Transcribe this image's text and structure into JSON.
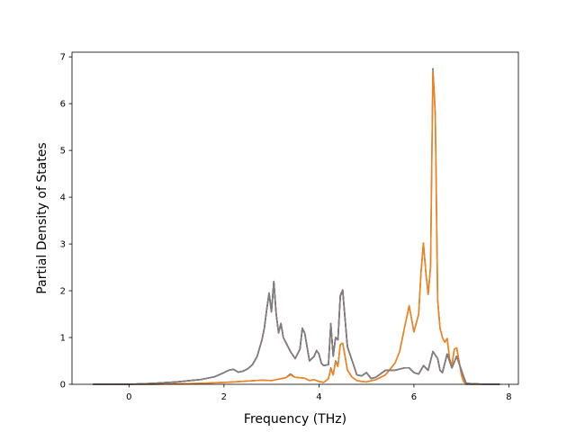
{
  "chart_data": {
    "type": "line",
    "title": "",
    "xlabel": "Frequency (THz)",
    "ylabel": "Partial Density of States",
    "xlim": [
      -1.2,
      8.2
    ],
    "ylim": [
      0,
      7.1
    ],
    "xticks": [
      0,
      2,
      4,
      6,
      8
    ],
    "yticks": [
      0,
      1,
      2,
      3,
      4,
      5,
      6,
      7
    ],
    "grid": false,
    "legend": "none",
    "series": [
      {
        "color": "#1f77b4",
        "x": [
          -0.75,
          0.0,
          0.5,
          1.0,
          1.5,
          2.0,
          2.2,
          2.5,
          2.8,
          3.0,
          3.1,
          3.2,
          3.3,
          3.4,
          3.5,
          3.6,
          3.7,
          3.8,
          3.9,
          4.0,
          4.1,
          4.2,
          4.25,
          4.3,
          4.35,
          4.4,
          4.45,
          4.5,
          4.55,
          4.6,
          4.7,
          4.8,
          4.9,
          5.0,
          5.2,
          5.4,
          5.6,
          5.7,
          5.8,
          5.9,
          6.0,
          6.1,
          6.15,
          6.2,
          6.25,
          6.3,
          6.35,
          6.4,
          6.45,
          6.5,
          6.55,
          6.6,
          6.65,
          6.7,
          6.75,
          6.8,
          6.85,
          6.9,
          6.95,
          7.0,
          7.05,
          7.1,
          7.5,
          7.8
        ],
        "y": [
          0.0,
          0.0,
          0.0,
          0.01,
          0.02,
          0.04,
          0.05,
          0.07,
          0.09,
          0.08,
          0.1,
          0.12,
          0.14,
          0.22,
          0.15,
          0.14,
          0.13,
          0.08,
          0.1,
          0.06,
          0.04,
          0.12,
          0.35,
          0.2,
          0.5,
          0.4,
          0.85,
          0.88,
          0.6,
          0.3,
          0.15,
          0.08,
          0.06,
          0.05,
          0.1,
          0.2,
          0.45,
          0.7,
          1.2,
          1.68,
          1.12,
          1.5,
          2.4,
          3.02,
          2.4,
          1.92,
          2.5,
          6.75,
          5.8,
          1.8,
          1.2,
          1.0,
          0.9,
          0.98,
          0.55,
          0.4,
          0.75,
          0.78,
          0.5,
          0.2,
          0.05,
          0.0,
          0.0,
          0.0
        ]
      },
      {
        "color": "#ff7f0e",
        "x": [
          -0.75,
          0.0,
          0.5,
          1.0,
          1.5,
          2.0,
          2.2,
          2.5,
          2.8,
          3.0,
          3.1,
          3.2,
          3.3,
          3.4,
          3.5,
          3.6,
          3.7,
          3.8,
          3.9,
          4.0,
          4.1,
          4.2,
          4.25,
          4.3,
          4.35,
          4.4,
          4.45,
          4.5,
          4.55,
          4.6,
          4.7,
          4.8,
          4.9,
          5.0,
          5.2,
          5.4,
          5.6,
          5.7,
          5.8,
          5.9,
          6.0,
          6.1,
          6.15,
          6.2,
          6.25,
          6.3,
          6.35,
          6.4,
          6.45,
          6.5,
          6.55,
          6.6,
          6.65,
          6.7,
          6.75,
          6.8,
          6.85,
          6.9,
          6.95,
          7.0,
          7.05,
          7.1,
          7.5,
          7.8
        ],
        "y": [
          0.0,
          0.0,
          0.0,
          0.01,
          0.02,
          0.04,
          0.05,
          0.07,
          0.09,
          0.08,
          0.1,
          0.12,
          0.14,
          0.2,
          0.15,
          0.14,
          0.13,
          0.08,
          0.1,
          0.06,
          0.04,
          0.12,
          0.33,
          0.2,
          0.48,
          0.38,
          0.85,
          0.88,
          0.6,
          0.3,
          0.15,
          0.08,
          0.06,
          0.05,
          0.1,
          0.2,
          0.45,
          0.7,
          1.2,
          1.68,
          1.12,
          1.5,
          2.4,
          3.02,
          2.4,
          1.92,
          2.5,
          6.7,
          5.75,
          1.8,
          1.2,
          1.0,
          0.9,
          0.98,
          0.55,
          0.4,
          0.75,
          0.78,
          0.5,
          0.2,
          0.05,
          0.0,
          0.0,
          0.0
        ]
      },
      {
        "color": "#2ca02c",
        "x": [
          -0.75,
          0.0,
          0.5,
          1.0,
          1.5,
          1.8,
          2.0,
          2.1,
          2.2,
          2.3,
          2.4,
          2.5,
          2.6,
          2.7,
          2.8,
          2.85,
          2.9,
          2.95,
          3.0,
          3.05,
          3.1,
          3.15,
          3.2,
          3.25,
          3.3,
          3.4,
          3.5,
          3.6,
          3.65,
          3.7,
          3.8,
          3.9,
          3.95,
          4.0,
          4.05,
          4.1,
          4.2,
          4.25,
          4.3,
          4.35,
          4.4,
          4.45,
          4.5,
          4.55,
          4.6,
          4.7,
          4.8,
          4.9,
          5.0,
          5.1,
          5.2,
          5.4,
          5.6,
          5.8,
          5.9,
          6.0,
          6.1,
          6.2,
          6.3,
          6.4,
          6.5,
          6.55,
          6.6,
          6.7,
          6.8,
          6.9,
          7.0,
          7.05,
          7.1,
          7.5,
          7.8
        ],
        "y": [
          0.0,
          0.0,
          0.02,
          0.05,
          0.1,
          0.16,
          0.25,
          0.3,
          0.32,
          0.26,
          0.28,
          0.33,
          0.42,
          0.6,
          0.95,
          1.2,
          1.6,
          1.95,
          1.55,
          2.2,
          1.5,
          1.1,
          1.3,
          1.0,
          0.9,
          0.7,
          0.55,
          0.75,
          1.2,
          1.1,
          0.5,
          0.6,
          0.72,
          0.65,
          0.45,
          0.4,
          0.42,
          1.3,
          0.6,
          1.0,
          0.95,
          1.9,
          2.02,
          1.4,
          0.8,
          0.5,
          0.2,
          0.18,
          0.25,
          0.12,
          0.15,
          0.3,
          0.3,
          0.35,
          0.35,
          0.25,
          0.22,
          0.4,
          0.3,
          0.7,
          0.55,
          0.3,
          0.25,
          0.65,
          0.35,
          0.6,
          0.3,
          0.15,
          0.02,
          0.0,
          0.0
        ]
      },
      {
        "color": "#d62728",
        "x": [
          -0.75,
          0.0,
          0.5,
          1.0,
          1.5,
          1.8,
          2.0,
          2.1,
          2.2,
          2.3,
          2.4,
          2.5,
          2.6,
          2.7,
          2.8,
          2.85,
          2.9,
          2.95,
          3.0,
          3.05,
          3.1,
          3.15,
          3.2,
          3.25,
          3.3,
          3.4,
          3.5,
          3.6,
          3.65,
          3.7,
          3.8,
          3.9,
          3.95,
          4.0,
          4.05,
          4.1,
          4.2,
          4.25,
          4.3,
          4.35,
          4.4,
          4.45,
          4.5,
          4.55,
          4.6,
          4.7,
          4.8,
          4.9,
          5.0,
          5.1,
          5.2,
          5.4,
          5.6,
          5.8,
          5.9,
          6.0,
          6.1,
          6.2,
          6.3,
          6.4,
          6.5,
          6.55,
          6.6,
          6.7,
          6.8,
          6.9,
          7.0,
          7.05,
          7.1,
          7.5,
          7.8
        ],
        "y": [
          0.0,
          0.0,
          0.02,
          0.05,
          0.1,
          0.16,
          0.25,
          0.3,
          0.32,
          0.26,
          0.28,
          0.33,
          0.42,
          0.6,
          0.95,
          1.2,
          1.6,
          1.93,
          1.55,
          2.18,
          1.5,
          1.1,
          1.3,
          1.0,
          0.9,
          0.7,
          0.55,
          0.75,
          1.18,
          1.1,
          0.5,
          0.6,
          0.72,
          0.65,
          0.45,
          0.4,
          0.42,
          1.28,
          0.6,
          1.0,
          0.95,
          1.88,
          2.0,
          1.4,
          0.8,
          0.5,
          0.2,
          0.18,
          0.25,
          0.12,
          0.15,
          0.3,
          0.3,
          0.35,
          0.35,
          0.25,
          0.22,
          0.4,
          0.3,
          0.7,
          0.55,
          0.3,
          0.25,
          0.65,
          0.35,
          0.6,
          0.3,
          0.15,
          0.02,
          0.0,
          0.0
        ]
      },
      {
        "color": "#9467bd",
        "x": [
          -0.75,
          0.0,
          0.5,
          1.0,
          1.5,
          1.8,
          2.0,
          2.1,
          2.2,
          2.3,
          2.4,
          2.5,
          2.6,
          2.7,
          2.8,
          2.85,
          2.9,
          2.95,
          3.0,
          3.05,
          3.1,
          3.15,
          3.2,
          3.25,
          3.3,
          3.4,
          3.5,
          3.6,
          3.65,
          3.7,
          3.8,
          3.9,
          3.95,
          4.0,
          4.05,
          4.1,
          4.2,
          4.25,
          4.3,
          4.35,
          4.4,
          4.45,
          4.5,
          4.55,
          4.6,
          4.7,
          4.8,
          4.9,
          5.0,
          5.1,
          5.2,
          5.4,
          5.6,
          5.8,
          5.9,
          6.0,
          6.1,
          6.2,
          6.3,
          6.4,
          6.5,
          6.55,
          6.6,
          6.7,
          6.8,
          6.9,
          7.0,
          7.05,
          7.1,
          7.5,
          7.8
        ],
        "y": [
          0.0,
          0.0,
          0.02,
          0.05,
          0.1,
          0.16,
          0.25,
          0.3,
          0.32,
          0.26,
          0.28,
          0.33,
          0.42,
          0.6,
          0.95,
          1.2,
          1.6,
          1.94,
          1.55,
          2.19,
          1.5,
          1.1,
          1.3,
          1.0,
          0.9,
          0.7,
          0.55,
          0.75,
          1.19,
          1.1,
          0.5,
          0.6,
          0.72,
          0.65,
          0.45,
          0.4,
          0.42,
          1.29,
          0.6,
          1.0,
          0.95,
          1.89,
          2.01,
          1.4,
          0.8,
          0.5,
          0.2,
          0.18,
          0.25,
          0.12,
          0.15,
          0.3,
          0.3,
          0.35,
          0.35,
          0.25,
          0.22,
          0.4,
          0.3,
          0.7,
          0.55,
          0.3,
          0.25,
          0.65,
          0.35,
          0.6,
          0.3,
          0.15,
          0.02,
          0.0,
          0.0
        ]
      },
      {
        "color": "#8c564b",
        "x": [
          -0.75,
          0.0,
          0.5,
          1.0,
          1.5,
          1.8,
          2.0,
          2.1,
          2.2,
          2.3,
          2.4,
          2.5,
          2.6,
          2.7,
          2.8,
          2.85,
          2.9,
          2.95,
          3.0,
          3.05,
          3.1,
          3.15,
          3.2,
          3.25,
          3.3,
          3.4,
          3.5,
          3.6,
          3.65,
          3.7,
          3.8,
          3.9,
          3.95,
          4.0,
          4.05,
          4.1,
          4.2,
          4.25,
          4.3,
          4.35,
          4.4,
          4.45,
          4.5,
          4.55,
          4.6,
          4.7,
          4.8,
          4.9,
          5.0,
          5.1,
          5.2,
          5.4,
          5.6,
          5.8,
          5.9,
          6.0,
          6.1,
          6.2,
          6.3,
          6.4,
          6.5,
          6.55,
          6.6,
          6.7,
          6.8,
          6.9,
          7.0,
          7.05,
          7.1,
          7.5,
          7.8
        ],
        "y": [
          0.0,
          0.0,
          0.02,
          0.05,
          0.1,
          0.16,
          0.25,
          0.3,
          0.32,
          0.26,
          0.28,
          0.33,
          0.42,
          0.6,
          0.95,
          1.2,
          1.6,
          1.95,
          1.55,
          2.2,
          1.5,
          1.1,
          1.3,
          1.0,
          0.9,
          0.7,
          0.55,
          0.75,
          1.2,
          1.1,
          0.5,
          0.6,
          0.72,
          0.65,
          0.45,
          0.4,
          0.42,
          1.3,
          0.6,
          1.0,
          0.95,
          1.9,
          2.02,
          1.4,
          0.8,
          0.5,
          0.2,
          0.18,
          0.25,
          0.12,
          0.15,
          0.3,
          0.3,
          0.35,
          0.35,
          0.25,
          0.22,
          0.4,
          0.3,
          0.7,
          0.55,
          0.3,
          0.25,
          0.65,
          0.35,
          0.6,
          0.3,
          0.15,
          0.02,
          0.0,
          0.0
        ]
      },
      {
        "color": "#7f7f7f",
        "x": [
          -0.75,
          0.0,
          0.5,
          1.0,
          1.5,
          1.8,
          2.0,
          2.1,
          2.2,
          2.3,
          2.4,
          2.5,
          2.6,
          2.7,
          2.8,
          2.85,
          2.9,
          2.95,
          3.0,
          3.05,
          3.1,
          3.15,
          3.2,
          3.25,
          3.3,
          3.4,
          3.5,
          3.6,
          3.65,
          3.7,
          3.8,
          3.9,
          3.95,
          4.0,
          4.05,
          4.1,
          4.2,
          4.25,
          4.3,
          4.35,
          4.4,
          4.45,
          4.5,
          4.55,
          4.6,
          4.7,
          4.8,
          4.9,
          5.0,
          5.1,
          5.2,
          5.4,
          5.6,
          5.8,
          5.9,
          6.0,
          6.1,
          6.2,
          6.3,
          6.4,
          6.5,
          6.55,
          6.6,
          6.7,
          6.8,
          6.9,
          7.0,
          7.05,
          7.1,
          7.5,
          7.8
        ],
        "y": [
          0.0,
          0.0,
          0.02,
          0.05,
          0.1,
          0.16,
          0.25,
          0.3,
          0.32,
          0.26,
          0.28,
          0.33,
          0.42,
          0.6,
          0.95,
          1.2,
          1.6,
          1.95,
          1.55,
          2.2,
          1.5,
          1.1,
          1.3,
          1.0,
          0.9,
          0.7,
          0.55,
          0.75,
          1.2,
          1.1,
          0.5,
          0.6,
          0.72,
          0.65,
          0.45,
          0.4,
          0.42,
          1.3,
          0.6,
          1.0,
          0.95,
          1.9,
          2.02,
          1.4,
          0.8,
          0.5,
          0.2,
          0.18,
          0.25,
          0.12,
          0.15,
          0.3,
          0.3,
          0.35,
          0.35,
          0.25,
          0.22,
          0.4,
          0.3,
          0.7,
          0.55,
          0.3,
          0.25,
          0.65,
          0.35,
          0.6,
          0.3,
          0.15,
          0.02,
          0.0,
          0.0
        ]
      }
    ]
  }
}
